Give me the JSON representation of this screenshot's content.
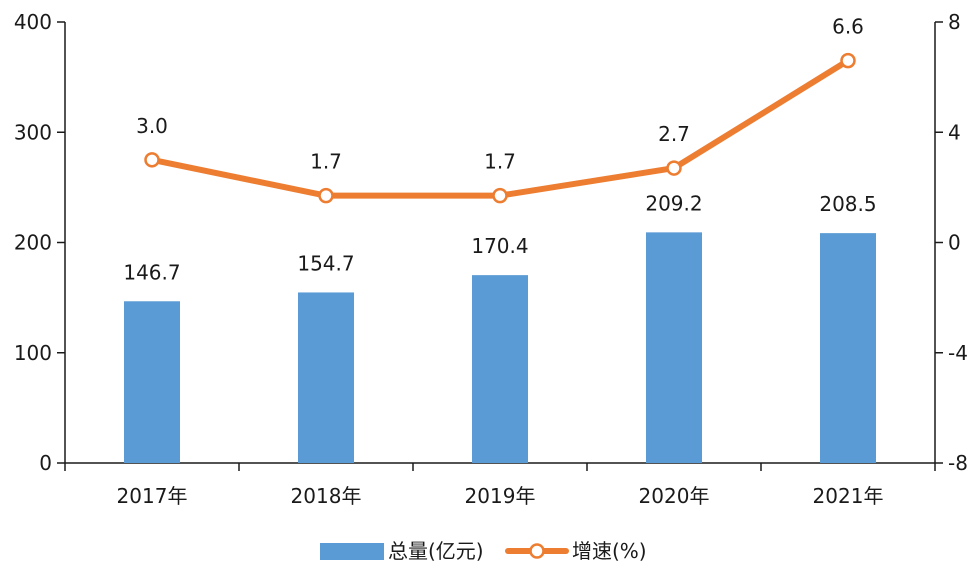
{
  "chart_data": {
    "type": "bar",
    "categories": [
      "2017年",
      "2018年",
      "2019年",
      "2020年",
      "2021年"
    ],
    "series": [
      {
        "name": "总量(亿元)",
        "type": "bar",
        "axis": "left",
        "values": [
          146.7,
          154.7,
          170.4,
          209.2,
          208.5
        ],
        "labels": [
          "146.7",
          "154.7",
          "170.4",
          "209.2",
          "208.5"
        ],
        "color": "#5b9bd5"
      },
      {
        "name": "增速(%)",
        "type": "line",
        "axis": "right",
        "values": [
          3.0,
          1.7,
          1.7,
          2.7,
          6.6
        ],
        "labels": [
          "3.0",
          "1.7",
          "1.7",
          "2.7",
          "6.6"
        ],
        "color": "#ed7d31"
      }
    ],
    "left_axis": {
      "ticks": [
        "0",
        "100",
        "200",
        "300",
        "400"
      ],
      "range": [
        0,
        400
      ]
    },
    "right_axis": {
      "ticks": [
        "-8",
        "-4",
        "0",
        "4",
        "8"
      ],
      "range": [
        -8,
        8
      ]
    },
    "grid": false,
    "legend": {
      "position": "bottom"
    }
  }
}
